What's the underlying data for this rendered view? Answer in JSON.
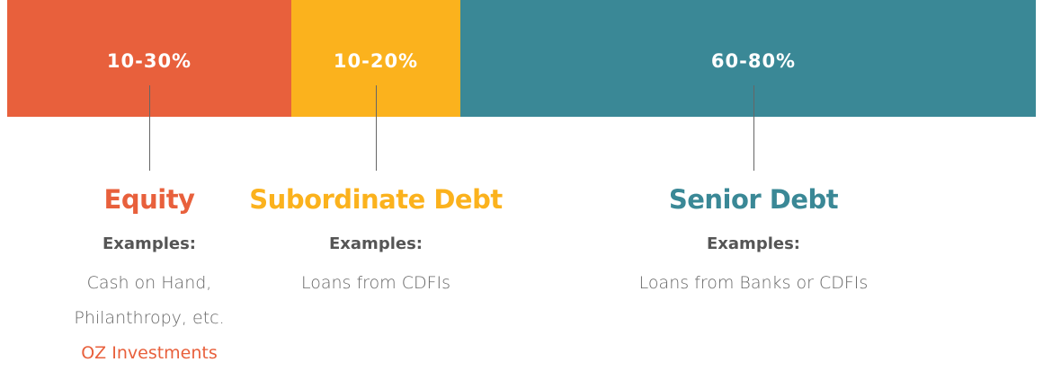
{
  "segments": [
    {
      "range": "10-30%",
      "name": "Equity",
      "color": "#e8603c",
      "examples_heading": "Examples:",
      "examples": [
        "Cash on Hand,",
        "Philanthropy, etc."
      ],
      "note": "OZ Investments"
    },
    {
      "range": "10-20%",
      "name": "Subordinate Debt",
      "color": "#fbb21d",
      "examples_heading": "Examples:",
      "examples": [
        "Loans from CDFIs"
      ]
    },
    {
      "range": "60-80%",
      "name": "Senior Debt",
      "color": "#3a8896",
      "examples_heading": "Examples:",
      "examples": [
        "Loans from Banks or CDFIs"
      ]
    }
  ]
}
